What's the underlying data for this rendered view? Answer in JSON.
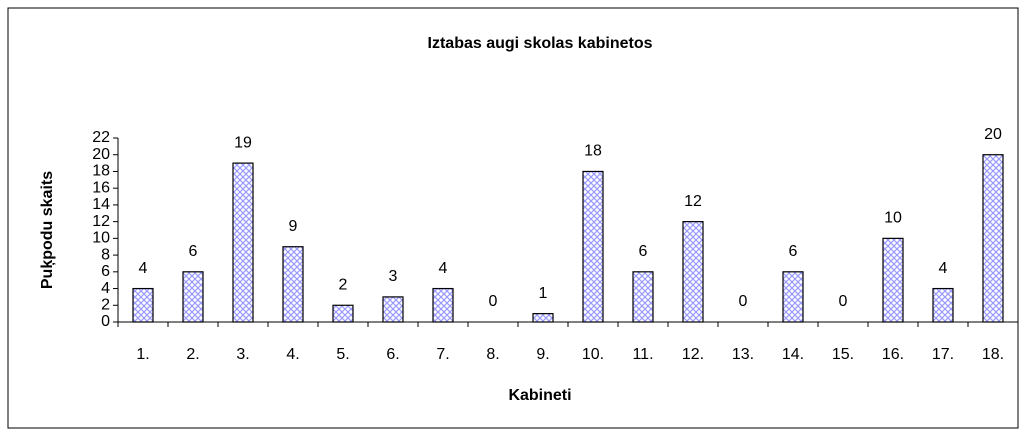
{
  "chart_data": {
    "type": "bar",
    "title": "Iztabas augi skolas kabinetos",
    "x_label": "Kabineti",
    "y_label": "Puķpodu skaits",
    "categories": [
      "1.",
      "2.",
      "3.",
      "4.",
      "5.",
      "6.",
      "7.",
      "8.",
      "9.",
      "10.",
      "11.",
      "12.",
      "13.",
      "14.",
      "15.",
      "16.",
      "17.",
      "18."
    ],
    "values": [
      4,
      6,
      19,
      9,
      2,
      3,
      4,
      0,
      1,
      18,
      6,
      12,
      0,
      6,
      0,
      10,
      4,
      20
    ],
    "color": "#9999ff",
    "ylim": [
      0,
      22
    ],
    "yticks": [
      0,
      2,
      4,
      6,
      8,
      10,
      12,
      14,
      16,
      18,
      20,
      22
    ],
    "grid": false
  }
}
